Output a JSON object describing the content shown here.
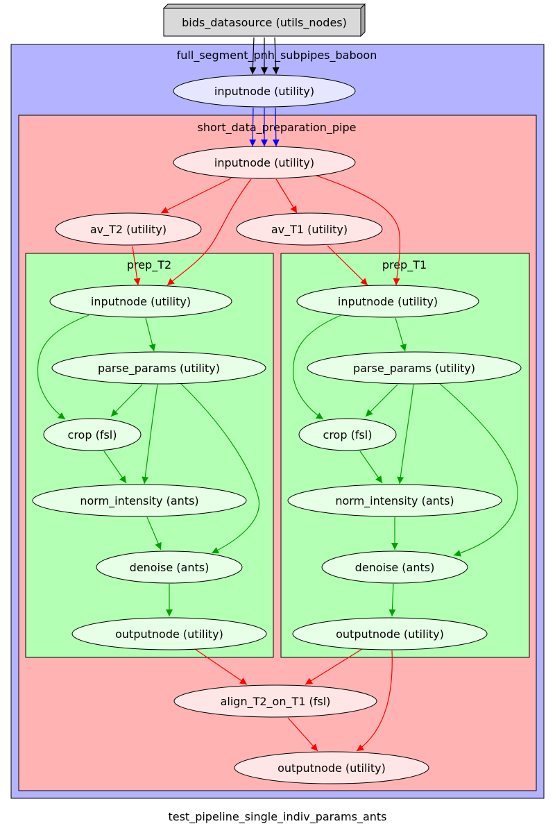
{
  "caption": "test_pipeline_single_indiv_params_ants",
  "clusters": {
    "outer": {
      "label": "full_segment_pnh_subpipes_baboon",
      "fill": "#b3b3ff"
    },
    "prep": {
      "label": "short_data_preparation_pipe",
      "fill": "#ffb3b3"
    },
    "prep_t2": {
      "label": "prep_T2",
      "fill": "#b3ffb3"
    },
    "prep_t1": {
      "label": "prep_T1",
      "fill": "#b3ffb3"
    }
  },
  "nodes": {
    "bids_datasource": {
      "label": "bids_datasource (utils_nodes)"
    },
    "outer_inputnode": {
      "label": "inputnode (utility)"
    },
    "prep_inputnode": {
      "label": "inputnode (utility)"
    },
    "av_t2": {
      "label": "av_T2 (utility)"
    },
    "av_t1": {
      "label": "av_T1 (utility)"
    },
    "t2_inputnode": {
      "label": "inputnode (utility)"
    },
    "t2_parse_params": {
      "label": "parse_params (utility)"
    },
    "t2_crop": {
      "label": "crop (fsl)"
    },
    "t2_norm_intensity": {
      "label": "norm_intensity (ants)"
    },
    "t2_denoise": {
      "label": "denoise (ants)"
    },
    "t2_outputnode": {
      "label": "outputnode (utility)"
    },
    "t1_inputnode": {
      "label": "inputnode (utility)"
    },
    "t1_parse_params": {
      "label": "parse_params (utility)"
    },
    "t1_crop": {
      "label": "crop (fsl)"
    },
    "t1_norm_intensity": {
      "label": "norm_intensity (ants)"
    },
    "t1_denoise": {
      "label": "denoise (ants)"
    },
    "t1_outputnode": {
      "label": "outputnode (utility)"
    },
    "align_t2_on_t1": {
      "label": "align_T2_on_T1 (fsl)"
    },
    "prep_outputnode": {
      "label": "outputnode (utility)"
    }
  },
  "colors": {
    "edge_black": "#000000",
    "edge_blue": "#0000ff",
    "edge_red": "#ff0000",
    "edge_green": "#00a000",
    "node_outer": "#e6e6ff",
    "node_prep": "#ffe6e6",
    "node_sub": "#e6ffe6",
    "datasource": "#d9d9d9"
  },
  "edges": [
    {
      "from": "bids_datasource",
      "to": "outer_inputnode",
      "color": "black"
    },
    {
      "from": "bids_datasource",
      "to": "outer_inputnode",
      "color": "black"
    },
    {
      "from": "bids_datasource",
      "to": "outer_inputnode",
      "color": "black"
    },
    {
      "from": "outer_inputnode",
      "to": "prep_inputnode",
      "color": "blue"
    },
    {
      "from": "outer_inputnode",
      "to": "prep_inputnode",
      "color": "blue"
    },
    {
      "from": "outer_inputnode",
      "to": "prep_inputnode",
      "color": "blue"
    },
    {
      "from": "prep_inputnode",
      "to": "av_t2",
      "color": "red"
    },
    {
      "from": "prep_inputnode",
      "to": "t2_inputnode",
      "color": "red"
    },
    {
      "from": "prep_inputnode",
      "to": "av_t1",
      "color": "red"
    },
    {
      "from": "prep_inputnode",
      "to": "t1_inputnode",
      "color": "red"
    },
    {
      "from": "av_t2",
      "to": "t2_inputnode",
      "color": "red"
    },
    {
      "from": "av_t1",
      "to": "t1_inputnode",
      "color": "red"
    },
    {
      "from": "t2_inputnode",
      "to": "t2_parse_params",
      "color": "green"
    },
    {
      "from": "t2_inputnode",
      "to": "t2_crop",
      "color": "green"
    },
    {
      "from": "t2_parse_params",
      "to": "t2_crop",
      "color": "green"
    },
    {
      "from": "t2_parse_params",
      "to": "t2_norm_intensity",
      "color": "green"
    },
    {
      "from": "t2_parse_params",
      "to": "t2_denoise",
      "color": "green"
    },
    {
      "from": "t2_crop",
      "to": "t2_norm_intensity",
      "color": "green"
    },
    {
      "from": "t2_norm_intensity",
      "to": "t2_denoise",
      "color": "green"
    },
    {
      "from": "t2_denoise",
      "to": "t2_outputnode",
      "color": "green"
    },
    {
      "from": "t1_inputnode",
      "to": "t1_parse_params",
      "color": "green"
    },
    {
      "from": "t1_inputnode",
      "to": "t1_crop",
      "color": "green"
    },
    {
      "from": "t1_parse_params",
      "to": "t1_crop",
      "color": "green"
    },
    {
      "from": "t1_parse_params",
      "to": "t1_norm_intensity",
      "color": "green"
    },
    {
      "from": "t1_parse_params",
      "to": "t1_denoise",
      "color": "green"
    },
    {
      "from": "t1_crop",
      "to": "t1_norm_intensity",
      "color": "green"
    },
    {
      "from": "t1_norm_intensity",
      "to": "t1_denoise",
      "color": "green"
    },
    {
      "from": "t1_denoise",
      "to": "t1_outputnode",
      "color": "green"
    },
    {
      "from": "t2_outputnode",
      "to": "align_t2_on_t1",
      "color": "red"
    },
    {
      "from": "t1_outputnode",
      "to": "align_t2_on_t1",
      "color": "red"
    },
    {
      "from": "t1_outputnode",
      "to": "prep_outputnode",
      "color": "red"
    },
    {
      "from": "align_t2_on_t1",
      "to": "prep_outputnode",
      "color": "red"
    }
  ]
}
